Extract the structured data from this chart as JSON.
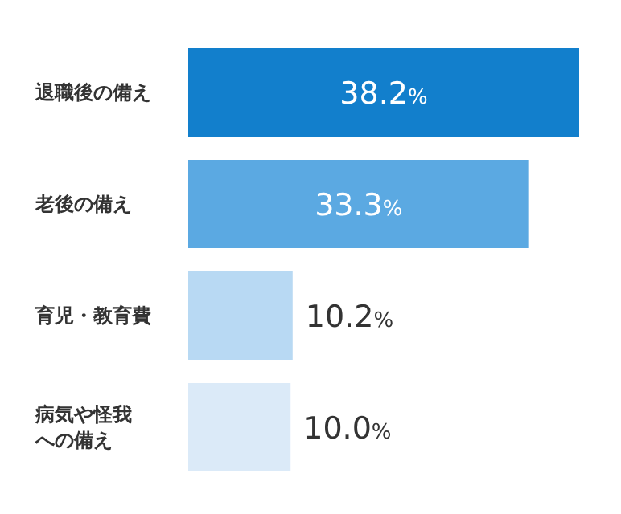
{
  "chart_data": {
    "type": "bar",
    "orientation": "horizontal",
    "categories": [
      "退職後の備え",
      "老後の備え",
      "育児・教育費",
      "病気や怪我への備え"
    ],
    "values": [
      38.2,
      33.3,
      10.2,
      10.0
    ],
    "colors": [
      "#127fcc",
      "#5ba9e2",
      "#b8d9f3",
      "#dbeaf8"
    ],
    "value_labels": [
      "38.2%",
      "33.3%",
      "10.2%",
      "10.0%"
    ]
  }
}
